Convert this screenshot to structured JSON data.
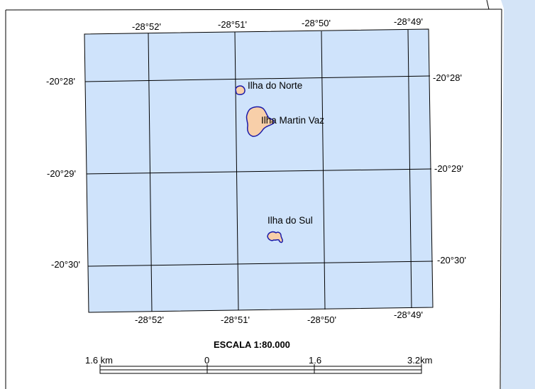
{
  "colors": {
    "ocean_outside": "#d4e4f7",
    "paper": "#ffffff",
    "water": "#cfe3fb",
    "land": "#f8cfa9",
    "coast": "#1a1aa8",
    "grid": "#000000"
  },
  "graticule": {
    "top_longitudes": [
      "-28°52'",
      "-28°51'",
      "-28°50'",
      "-28°49'"
    ],
    "bottom_longitudes": [
      "-28°52'",
      "-28°51'",
      "-28°50'",
      "-28°49'"
    ],
    "left_latitudes": [
      "-20°28'",
      "-20°29'",
      "-20°30'"
    ],
    "right_latitudes": [
      "-20°28'",
      "-20°29'",
      "-20°30'"
    ]
  },
  "places": [
    {
      "name": "Ilha do Norte"
    },
    {
      "name": "Ilha Martin Vaz"
    },
    {
      "name": "Ilha do Sul"
    }
  ],
  "scale": {
    "title": "ESCALA 1:80.000",
    "ticks": [
      "1.6 km",
      "0",
      "1.6",
      "3.2km"
    ]
  }
}
